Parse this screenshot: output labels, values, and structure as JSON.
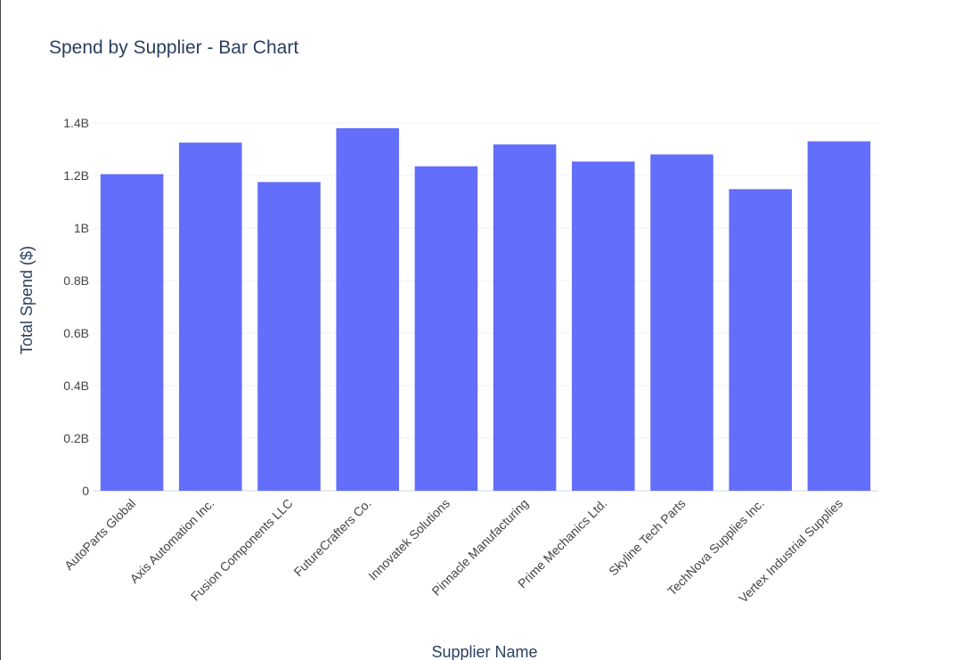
{
  "chart_data": {
    "type": "bar",
    "title": "Spend by Supplier - Bar Chart",
    "xlabel": "Supplier Name",
    "ylabel": "Total Spend ($)",
    "categories": [
      "AutoParts Global",
      "Axis Automation Inc.",
      "Fusion Components LLC",
      "FutureCrafters Co.",
      "Innovatek Solutions",
      "Pinnacle Manufacturing",
      "Prime Mechanics Ltd.",
      "Skyline Tech Parts",
      "TechNova Supplies Inc.",
      "Vertex Industrial Supplies"
    ],
    "values": [
      1205000000,
      1325000000,
      1175000000,
      1380000000,
      1235000000,
      1318000000,
      1253000000,
      1280000000,
      1148000000,
      1330000000
    ],
    "ylim": [
      0,
      1400000000
    ],
    "yticks": [
      0,
      200000000,
      400000000,
      600000000,
      800000000,
      1000000000,
      1200000000,
      1400000000
    ],
    "ytick_labels": [
      "0",
      "0.2B",
      "0.4B",
      "0.6B",
      "0.8B",
      "1B",
      "1.2B",
      "1.4B"
    ],
    "grid": true,
    "bar_color": "#636efa",
    "grid_color": "#ebf0f8"
  }
}
